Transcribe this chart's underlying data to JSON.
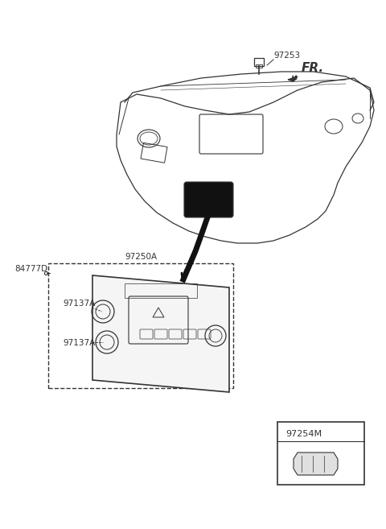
{
  "bg_color": "#ffffff",
  "line_color": "#333333",
  "label_97253": "97253",
  "label_FR": "FR.",
  "label_84777D": "84777D",
  "label_97250A": "97250A",
  "label_97137A_top": "97137A",
  "label_97137A_bot": "97137A",
  "label_97254M": "97254M",
  "font_size_labels": 7.5,
  "font_size_FR": 11
}
